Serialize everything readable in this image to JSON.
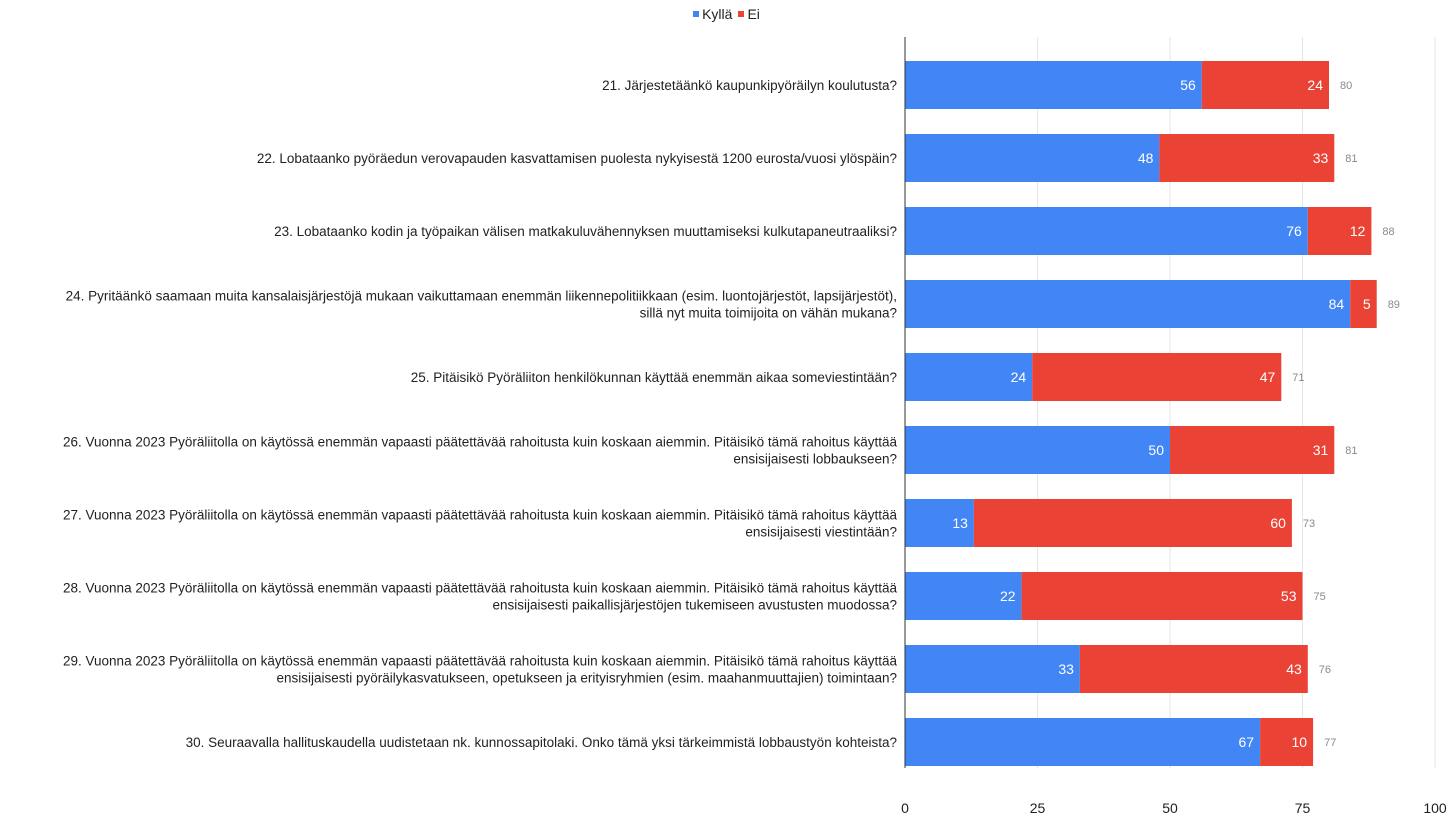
{
  "chart_data": {
    "type": "bar",
    "orientation": "horizontal",
    "stacked": true,
    "legend_position": "top",
    "grid": true,
    "xlim": [
      0,
      100
    ],
    "x_ticks": [
      0,
      25,
      50,
      75,
      100
    ],
    "categories": [
      [
        "21. Järjestetäänkö kaupunkipyöräilyn koulutusta?"
      ],
      [
        "22. Lobataanko pyöräedun verovapauden kasvattamisen puolesta nykyisestä 1200 eurosta/vuosi ylöspäin?"
      ],
      [
        "23. Lobataanko kodin ja työpaikan välisen matkakuluvähennyksen muuttamiseksi kulkutapaneutraaliksi?"
      ],
      [
        "24. Pyritäänkö saamaan muita kansalaisjärjestöjä mukaan vaikuttamaan enemmän liikennepolitiikkaan (esim.  luontojärjestöt, lapsijärjestöt),",
        "sillä nyt muita toimijoita on vähän mukana?"
      ],
      [
        "25. Pitäisikö Pyöräliiton henkilökunnan käyttää enemmän aikaa someviestintään?"
      ],
      [
        "26. Vuonna 2023 Pyöräliitolla on käytössä enemmän vapaasti päätettävää rahoitusta kuin koskaan aiemmin. Pitäisikö tämä rahoitus käyttää",
        "ensisijaisesti lobbaukseen?"
      ],
      [
        "27. Vuonna 2023 Pyöräliitolla on käytössä enemmän vapaasti päätettävää rahoitusta kuin koskaan aiemmin. Pitäisikö tämä rahoitus käyttää",
        "ensisijaisesti viestintään?"
      ],
      [
        "28. Vuonna 2023 Pyöräliitolla on käytössä enemmän vapaasti päätettävää rahoitusta kuin koskaan aiemmin. Pitäisikö tämä rahoitus käyttää",
        "ensisijaisesti paikallisjärjestöjen tukemiseen avustusten muodossa?"
      ],
      [
        "29. Vuonna 2023 Pyöräliitolla on käytössä enemmän vapaasti päätettävää rahoitusta kuin koskaan aiemmin. Pitäisikö tämä rahoitus käyttää",
        "ensisijaisesti pyöräilykasvatukseen, opetukseen ja erityisryhmien (esim. maahanmuuttajien) toimintaan?"
      ],
      [
        "30. Seuraavalla hallituskaudella uudistetaan nk. kunnossapitolaki. Onko tämä yksi tärkeimmistä lobbaustyön kohteista?"
      ]
    ],
    "series": [
      {
        "name": "Kyllä",
        "color": "#4285f4",
        "values": [
          56,
          48,
          76,
          84,
          24,
          50,
          13,
          22,
          33,
          67
        ]
      },
      {
        "name": "Ei",
        "color": "#ea4335",
        "values": [
          24,
          33,
          12,
          5,
          47,
          31,
          60,
          53,
          43,
          10
        ]
      }
    ],
    "totals": [
      80,
      81,
      88,
      89,
      71,
      81,
      73,
      75,
      76,
      77
    ]
  }
}
